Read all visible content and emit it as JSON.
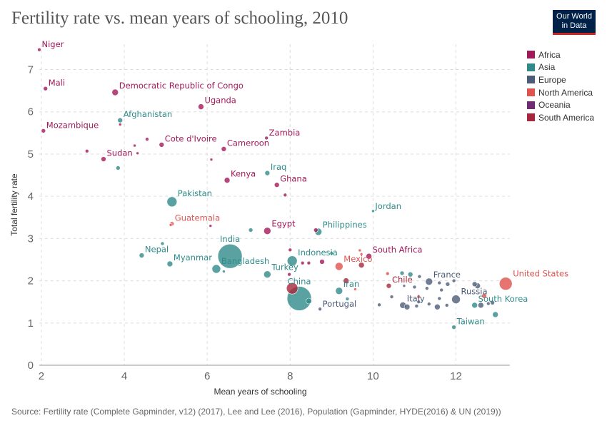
{
  "title": "Fertility rate vs. mean years of schooling, 2010",
  "logo": {
    "line1": "Our World",
    "line2": "in Data"
  },
  "source": "Source: Fertility rate (Complete Gapminder, v12) (2017), Lee and Lee (2016), Population (Gapminder, HYDE(2016) & UN (2019))",
  "colors": {
    "Africa": "#a2195b",
    "Asia": "#2f8b8a",
    "Europe": "#4c5c78",
    "North America": "#e0524e",
    "Oceania": "#6f2b73",
    "South America": "#a8273c"
  },
  "chart_data": {
    "type": "scatter",
    "title": "Fertility rate vs. mean years of schooling, 2010",
    "xlabel": "Mean years of schooling",
    "ylabel": "Total fertility rate",
    "xlim": [
      1.95,
      13.3
    ],
    "ylim": [
      0,
      7.6
    ],
    "xticks": [
      2,
      4,
      6,
      8,
      10,
      12
    ],
    "yticks": [
      0,
      1,
      2,
      3,
      4,
      5,
      6,
      7
    ],
    "grid": true,
    "legend_position": "right",
    "legend": [
      "Africa",
      "Asia",
      "Europe",
      "North America",
      "Oceania",
      "South America"
    ],
    "points": [
      {
        "x": 1.95,
        "y": 7.47,
        "r": 2.5,
        "c": "Africa",
        "label": "Niger"
      },
      {
        "x": 2.1,
        "y": 6.55,
        "r": 3,
        "c": "Africa",
        "label": "Mali"
      },
      {
        "x": 3.78,
        "y": 6.46,
        "r": 4.5,
        "c": "Africa",
        "label": "Democratic Republic of Congo"
      },
      {
        "x": 5.85,
        "y": 6.12,
        "r": 4,
        "c": "Africa",
        "label": "Uganda"
      },
      {
        "x": 3.9,
        "y": 5.8,
        "r": 3.5,
        "c": "Asia",
        "label": "Afghanistan"
      },
      {
        "x": 3.9,
        "y": 5.7,
        "r": 2,
        "c": "Africa"
      },
      {
        "x": 2.05,
        "y": 5.55,
        "r": 3,
        "c": "Africa",
        "label": "Mozambique"
      },
      {
        "x": 7.43,
        "y": 5.38,
        "r": 2.5,
        "c": "Africa",
        "label": "Zambia"
      },
      {
        "x": 4.55,
        "y": 5.35,
        "r": 2.5,
        "c": "Africa"
      },
      {
        "x": 4.9,
        "y": 5.22,
        "r": 3.5,
        "c": "Africa",
        "label": "Cote d'Ivoire"
      },
      {
        "x": 4.25,
        "y": 5.2,
        "r": 2,
        "c": "Africa"
      },
      {
        "x": 6.4,
        "y": 5.12,
        "r": 3.5,
        "c": "Africa",
        "label": "Cameroon"
      },
      {
        "x": 3.1,
        "y": 5.07,
        "r": 2.5,
        "c": "Africa"
      },
      {
        "x": 4.32,
        "y": 5.02,
        "r": 2,
        "c": "Africa"
      },
      {
        "x": 3.5,
        "y": 4.88,
        "r": 3.5,
        "c": "Africa",
        "label": "Sudan"
      },
      {
        "x": 6.1,
        "y": 4.87,
        "r": 2,
        "c": "Africa"
      },
      {
        "x": 3.85,
        "y": 4.67,
        "r": 3,
        "c": "Asia"
      },
      {
        "x": 7.45,
        "y": 4.55,
        "r": 3.5,
        "c": "Asia",
        "label": "Iraq"
      },
      {
        "x": 6.48,
        "y": 4.38,
        "r": 4,
        "c": "Africa",
        "label": "Kenya"
      },
      {
        "x": 7.68,
        "y": 4.27,
        "r": 3.5,
        "c": "Africa",
        "label": "Ghana"
      },
      {
        "x": 7.88,
        "y": 4.03,
        "r": 2.5,
        "c": "Africa"
      },
      {
        "x": 5.15,
        "y": 3.87,
        "r": 7,
        "c": "Asia",
        "label": "Pakistan"
      },
      {
        "x": 10.0,
        "y": 3.65,
        "r": 2,
        "c": "Asia",
        "label": "Jordan"
      },
      {
        "x": 5.15,
        "y": 3.35,
        "r": 3,
        "c": "North America",
        "label": "Guatemala"
      },
      {
        "x": 5.12,
        "y": 3.32,
        "r": 2,
        "c": "North America"
      },
      {
        "x": 6.08,
        "y": 3.3,
        "r": 2,
        "c": "Africa"
      },
      {
        "x": 7.45,
        "y": 3.18,
        "r": 5,
        "c": "Africa",
        "label": "Egypt"
      },
      {
        "x": 8.62,
        "y": 3.2,
        "r": 3,
        "c": "Africa"
      },
      {
        "x": 8.68,
        "y": 3.16,
        "r": 5,
        "c": "Asia",
        "label": "Philippines"
      },
      {
        "x": 7.05,
        "y": 3.2,
        "r": 3,
        "c": "Asia"
      },
      {
        "x": 4.92,
        "y": 2.88,
        "r": 2.5,
        "c": "Asia"
      },
      {
        "x": 6.55,
        "y": 2.58,
        "r": 17,
        "c": "Asia",
        "label": "India"
      },
      {
        "x": 4.42,
        "y": 2.6,
        "r": 3.5,
        "c": "Asia",
        "label": "Nepal"
      },
      {
        "x": 8.05,
        "y": 2.47,
        "r": 7,
        "c": "Asia",
        "label": "Indonesia"
      },
      {
        "x": 8.0,
        "y": 2.73,
        "r": 2.5,
        "c": "Africa"
      },
      {
        "x": 9.0,
        "y": 2.65,
        "r": 2.5,
        "c": "Asia"
      },
      {
        "x": 9.9,
        "y": 2.58,
        "r": 4,
        "c": "Africa",
        "label": "South Africa"
      },
      {
        "x": 9.68,
        "y": 2.72,
        "r": 2,
        "c": "North America"
      },
      {
        "x": 9.72,
        "y": 2.63,
        "r": 2,
        "c": "North America"
      },
      {
        "x": 8.77,
        "y": 2.45,
        "r": 3.5,
        "c": "Africa"
      },
      {
        "x": 8.3,
        "y": 2.42,
        "r": 2.5,
        "c": "Africa"
      },
      {
        "x": 8.45,
        "y": 2.42,
        "r": 2.5,
        "c": "Africa"
      },
      {
        "x": 5.1,
        "y": 2.4,
        "r": 4,
        "c": "Asia",
        "label": "Myanmar"
      },
      {
        "x": 9.18,
        "y": 2.34,
        "r": 5.5,
        "c": "North America",
        "label": "Mexico"
      },
      {
        "x": 9.72,
        "y": 2.37,
        "r": 4,
        "c": "South America"
      },
      {
        "x": 6.22,
        "y": 2.28,
        "r": 6,
        "c": "Asia",
        "label": "Bangladesh"
      },
      {
        "x": 6.4,
        "y": 2.22,
        "r": 2,
        "c": "Asia"
      },
      {
        "x": 7.45,
        "y": 2.15,
        "r": 5,
        "c": "Asia",
        "label": "Turkey"
      },
      {
        "x": 7.98,
        "y": 2.15,
        "r": 2.5,
        "c": "Africa"
      },
      {
        "x": 10.35,
        "y": 2.17,
        "r": 2.5,
        "c": "North America"
      },
      {
        "x": 10.7,
        "y": 2.18,
        "r": 3,
        "c": "Asia"
      },
      {
        "x": 10.9,
        "y": 2.15,
        "r": 3.5,
        "c": "Asia"
      },
      {
        "x": 11.12,
        "y": 2.1,
        "r": 2.5,
        "c": "Europe"
      },
      {
        "x": 9.35,
        "y": 2.0,
        "r": 4,
        "c": "South America"
      },
      {
        "x": 10.38,
        "y": 1.88,
        "r": 3.5,
        "c": "South America",
        "label": "Chile"
      },
      {
        "x": 11.35,
        "y": 1.98,
        "r": 5,
        "c": "Europe",
        "label": "France"
      },
      {
        "x": 11.8,
        "y": 1.92,
        "r": 3,
        "c": "Europe"
      },
      {
        "x": 11.95,
        "y": 2.0,
        "r": 2.5,
        "c": "Europe"
      },
      {
        "x": 11.6,
        "y": 1.95,
        "r": 2.5,
        "c": "Europe"
      },
      {
        "x": 12.45,
        "y": 1.92,
        "r": 3.5,
        "c": "Europe"
      },
      {
        "x": 12.52,
        "y": 1.88,
        "r": 4,
        "c": "Europe"
      },
      {
        "x": 13.2,
        "y": 1.93,
        "r": 9,
        "c": "North America",
        "label": "United States"
      },
      {
        "x": 11.0,
        "y": 1.85,
        "r": 2.5,
        "c": "Europe"
      },
      {
        "x": 10.75,
        "y": 1.88,
        "r": 2,
        "c": "Europe"
      },
      {
        "x": 11.3,
        "y": 1.82,
        "r": 2.5,
        "c": "Europe"
      },
      {
        "x": 11.65,
        "y": 1.78,
        "r": 2.5,
        "c": "Europe"
      },
      {
        "x": 9.57,
        "y": 1.8,
        "r": 2,
        "c": "North America"
      },
      {
        "x": 8.05,
        "y": 1.82,
        "r": 8,
        "c": "South America"
      },
      {
        "x": 9.18,
        "y": 1.76,
        "r": 5,
        "c": "Asia",
        "label": "Iran"
      },
      {
        "x": 8.22,
        "y": 1.58,
        "r": 17,
        "c": "Asia",
        "label": "China"
      },
      {
        "x": 8.45,
        "y": 1.52,
        "r": 4,
        "c": "Asia"
      },
      {
        "x": 9.38,
        "y": 1.57,
        "r": 2.5,
        "c": "Asia"
      },
      {
        "x": 10.45,
        "y": 1.62,
        "r": 2.5,
        "c": "Europe"
      },
      {
        "x": 11.1,
        "y": 1.62,
        "r": 2.5,
        "c": "North America"
      },
      {
        "x": 11.6,
        "y": 1.58,
        "r": 2.5,
        "c": "Europe"
      },
      {
        "x": 12.0,
        "y": 1.56,
        "r": 6,
        "c": "Europe",
        "label": "Russia"
      },
      {
        "x": 12.68,
        "y": 1.64,
        "r": 3.5,
        "c": "North America"
      },
      {
        "x": 11.1,
        "y": 1.5,
        "r": 2.5,
        "c": "Europe"
      },
      {
        "x": 11.35,
        "y": 1.45,
        "r": 2.5,
        "c": "Europe"
      },
      {
        "x": 10.72,
        "y": 1.42,
        "r": 4.5,
        "c": "Europe",
        "label": "Italy"
      },
      {
        "x": 10.82,
        "y": 1.38,
        "r": 4,
        "c": "Europe"
      },
      {
        "x": 11.55,
        "y": 1.38,
        "r": 4,
        "c": "Europe"
      },
      {
        "x": 10.15,
        "y": 1.43,
        "r": 2.5,
        "c": "Europe"
      },
      {
        "x": 11.05,
        "y": 1.4,
        "r": 2.5,
        "c": "Europe"
      },
      {
        "x": 12.45,
        "y": 1.42,
        "r": 4,
        "c": "Asia",
        "label": "South Korea"
      },
      {
        "x": 12.6,
        "y": 1.42,
        "r": 4,
        "c": "Europe"
      },
      {
        "x": 12.78,
        "y": 1.46,
        "r": 2.5,
        "c": "Europe"
      },
      {
        "x": 12.88,
        "y": 1.48,
        "r": 3,
        "c": "Europe"
      },
      {
        "x": 11.78,
        "y": 1.42,
        "r": 2.5,
        "c": "Europe"
      },
      {
        "x": 8.72,
        "y": 1.33,
        "r": 2.5,
        "c": "Europe",
        "label": "Portugal"
      },
      {
        "x": 12.95,
        "y": 1.2,
        "r": 4,
        "c": "Asia"
      },
      {
        "x": 11.95,
        "y": 0.9,
        "r": 3,
        "c": "Asia",
        "label": "Taiwan"
      }
    ]
  }
}
